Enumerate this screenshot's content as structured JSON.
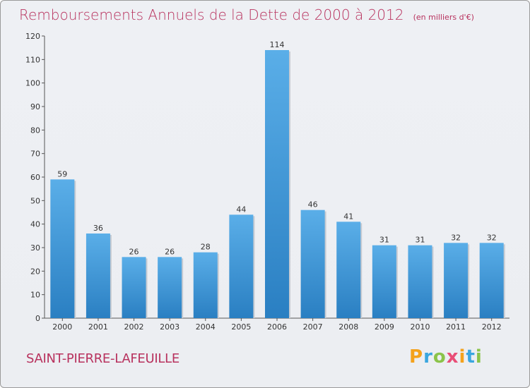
{
  "title": "Remboursements Annuels de la Dette de 2000 à 2012",
  "unit": "(en milliers d'€)",
  "commune": "SAINT-PIERRE-LAFEUILLE",
  "logo": {
    "text": "Proxiti",
    "colors": [
      "#f4a21c",
      "#3aa6df",
      "#8bc34a",
      "#e94e77",
      "#f4a21c",
      "#3aa6df",
      "#8bc34a"
    ]
  },
  "chart_data": {
    "type": "bar",
    "categories": [
      "2000",
      "2001",
      "2002",
      "2003",
      "2004",
      "2005",
      "2006",
      "2007",
      "2008",
      "2009",
      "2010",
      "2011",
      "2012"
    ],
    "values": [
      59,
      36,
      26,
      26,
      28,
      44,
      114,
      46,
      41,
      31,
      31,
      32,
      32
    ],
    "ylim": [
      0,
      120
    ],
    "yticks": [
      0,
      10,
      20,
      30,
      40,
      50,
      60,
      70,
      80,
      90,
      100,
      110,
      120
    ],
    "grid": false,
    "bar_color_top": "#5aaee8",
    "bar_color_bottom": "#2a7fc2"
  }
}
